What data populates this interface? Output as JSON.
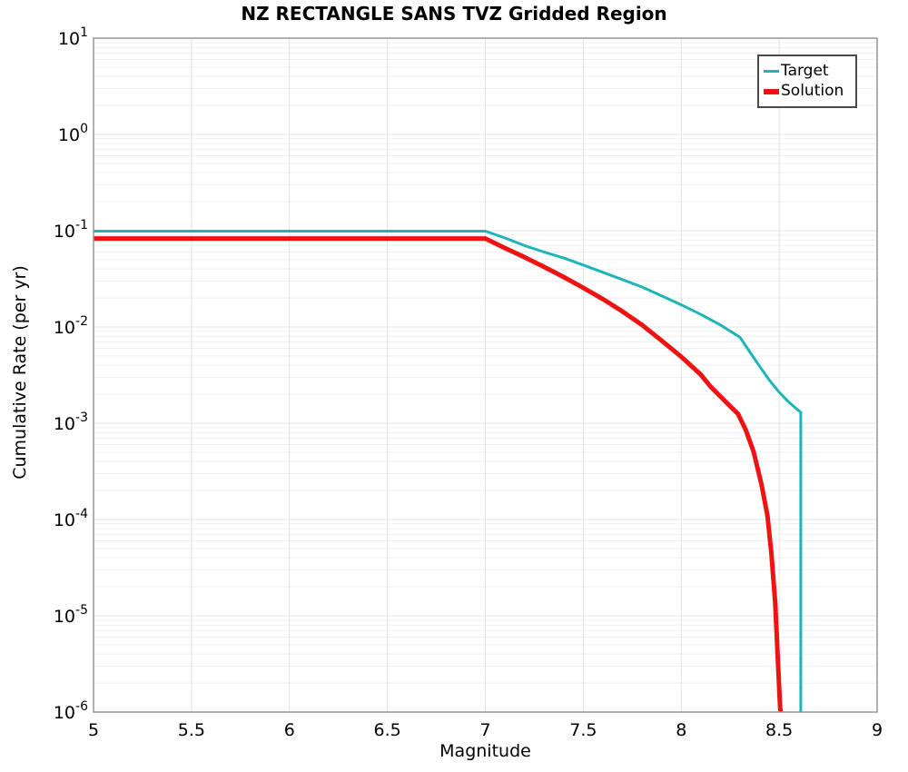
{
  "chart_data": {
    "type": "line",
    "title": "NZ RECTANGLE SANS TVZ Gridded Region",
    "xlabel": "Magnitude",
    "ylabel": "Cumulative Rate (per yr)",
    "xlim": [
      5,
      9
    ],
    "ylim": [
      1e-06,
      10
    ],
    "yscale": "log",
    "x_ticks": [
      5,
      5.5,
      6,
      6.5,
      7,
      7.5,
      8,
      8.5,
      9
    ],
    "y_tick_exponents": [
      1,
      0,
      -1,
      -2,
      -3,
      -4,
      -5,
      -6
    ],
    "grid": true,
    "legend_position": "top-right",
    "style": {
      "frame_color": "#969696",
      "grid_minor_color": "#efefef",
      "grid_major_color": "#e4e4e4",
      "grid_vertical_color": "#e2e2e2",
      "background": "#ffffff",
      "legend_border_color": "#4a4a4a"
    },
    "series": [
      {
        "name": "Target",
        "color": "#1cb5b8",
        "line_width": 3,
        "x": [
          5.0,
          7.0,
          7.1,
          7.2,
          7.3,
          7.4,
          7.5,
          7.6,
          7.7,
          7.8,
          7.9,
          8.0,
          8.1,
          8.2,
          8.3,
          8.35,
          8.4,
          8.45,
          8.5,
          8.55,
          8.6,
          8.61,
          8.61
        ],
        "y": [
          0.099,
          0.099,
          0.084,
          0.07,
          0.06,
          0.052,
          0.044,
          0.037,
          0.031,
          0.026,
          0.021,
          0.017,
          0.0135,
          0.0105,
          0.0078,
          0.0055,
          0.0039,
          0.0028,
          0.0021,
          0.00165,
          0.00135,
          0.0013,
          1e-06
        ]
      },
      {
        "name": "Solution",
        "color": "#ef1212",
        "line_width": 5,
        "x": [
          5.0,
          7.0,
          7.1,
          7.2,
          7.3,
          7.4,
          7.5,
          7.6,
          7.7,
          7.8,
          7.9,
          8.0,
          8.1,
          8.15,
          8.2,
          8.25,
          8.29,
          8.33,
          8.37,
          8.41,
          8.44,
          8.46,
          8.48,
          8.495,
          8.505,
          8.508
        ],
        "y": [
          0.083,
          0.083,
          0.066,
          0.053,
          0.042,
          0.033,
          0.0255,
          0.0195,
          0.0145,
          0.0105,
          0.0072,
          0.0049,
          0.0032,
          0.0024,
          0.0019,
          0.0015,
          0.00125,
          0.00085,
          0.0005,
          0.00023,
          0.00011,
          4.5e-05,
          1.35e-05,
          3e-06,
          1.1e-06,
          1e-06
        ]
      }
    ]
  }
}
